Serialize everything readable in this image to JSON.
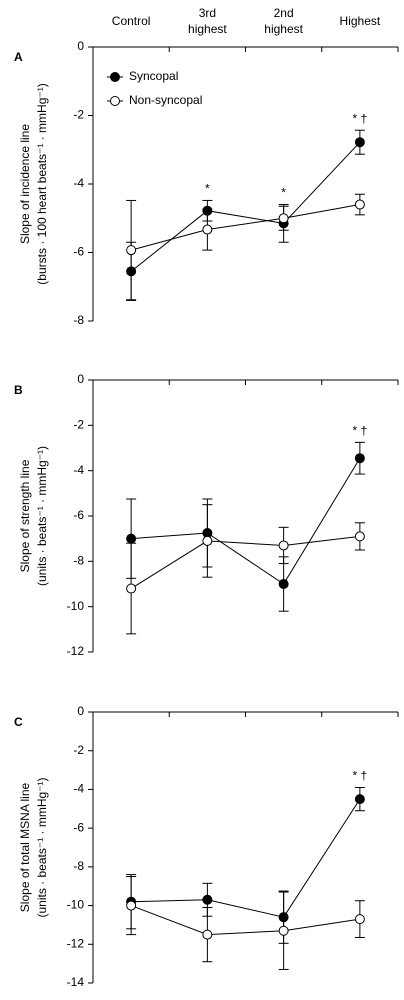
{
  "chart_data": [
    {
      "type": "line",
      "title": "A",
      "ylabel": [
        "Slope of incidence line",
        "(bursts · 100 heart beats⁻¹ · mmHg⁻¹)"
      ],
      "categories": [
        "Control",
        "3rd highest",
        "2nd highest",
        "Highest"
      ],
      "ylim": [
        0,
        -8
      ],
      "yticks": [
        0,
        -2,
        -4,
        -6,
        -8
      ],
      "legend": "upper left",
      "series": [
        {
          "name": "Syncopal",
          "color": "#000000",
          "marker": "filled",
          "values": [
            -6.55,
            -4.78,
            -5.15,
            -2.78
          ],
          "errors": [
            0.85,
            0.3,
            0.55,
            0.35
          ]
        },
        {
          "name": "Non-syncopal",
          "color": "#000000",
          "marker": "open",
          "values": [
            -5.93,
            -5.33,
            -5.0,
            -4.6
          ],
          "errors": [
            1.45,
            0.6,
            0.35,
            0.3
          ]
        }
      ],
      "annotations": [
        {
          "text": "*",
          "category": 1
        },
        {
          "text": "*",
          "category": 2
        },
        {
          "text": "* †",
          "category": 3
        }
      ]
    },
    {
      "type": "line",
      "title": "B",
      "ylabel": [
        "Slope of strength line",
        "(units · beats⁻¹ · mmHg⁻¹)"
      ],
      "ylim": [
        0,
        -12
      ],
      "yticks": [
        0,
        -2,
        -4,
        -6,
        -8,
        -10,
        -12
      ],
      "series": [
        {
          "color": "#000000",
          "marker": "filled",
          "values": [
            -7.0,
            -6.75,
            -9.0,
            -3.45
          ],
          "errors": [
            1.75,
            1.5,
            1.2,
            0.7
          ]
        },
        {
          "color": "#000000",
          "marker": "open",
          "values": [
            -9.2,
            -7.1,
            -7.3,
            -6.9
          ],
          "errors": [
            2.0,
            1.6,
            0.8,
            0.6
          ]
        }
      ],
      "annotations": [
        {
          "text": "* †",
          "category": 3
        }
      ]
    },
    {
      "type": "line",
      "title": "C",
      "ylabel": [
        "Slope of total MSNA line",
        "(units · beats⁻¹ · mmHg⁻¹)"
      ],
      "ylim": [
        0,
        -14
      ],
      "yticks": [
        0,
        -2,
        -4,
        -6,
        -8,
        -10,
        -12,
        -14
      ],
      "series": [
        {
          "color": "#000000",
          "marker": "filled",
          "values": [
            -9.8,
            -9.7,
            -10.6,
            -4.5
          ],
          "errors": [
            1.4,
            0.85,
            1.35,
            0.6
          ]
        },
        {
          "color": "#000000",
          "marker": "open",
          "values": [
            -10.0,
            -11.5,
            -11.3,
            -10.7
          ],
          "errors": [
            1.5,
            1.4,
            2.0,
            0.95
          ]
        }
      ],
      "annotations": [
        {
          "text": "* †",
          "category": 3
        }
      ]
    }
  ]
}
